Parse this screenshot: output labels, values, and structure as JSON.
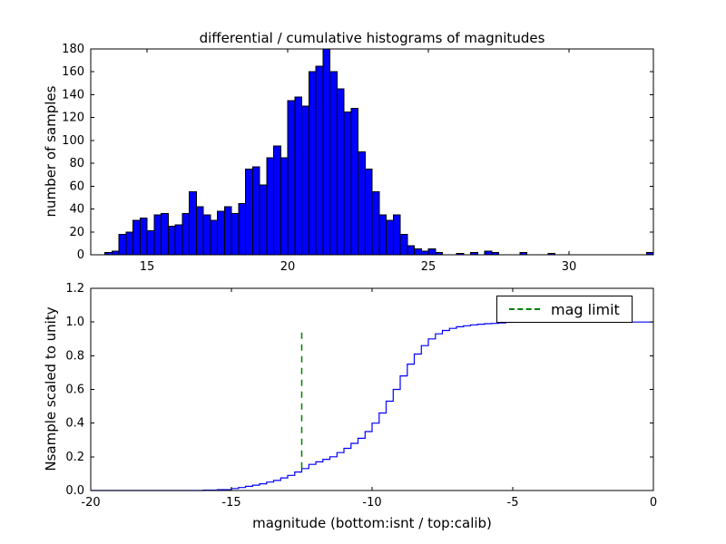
{
  "figure": {
    "background": "#ffffff",
    "axis_color": "#000000"
  },
  "chart_data": [
    {
      "type": "bar",
      "title": "differential / cumulative histograms of magnitudes",
      "ylabel": "number of samples",
      "bar_color": "#0000ff",
      "bar_edge_color": "#000000",
      "bin_width": 0.25,
      "xlim": [
        13,
        33
      ],
      "ylim": [
        0,
        180
      ],
      "xtick_values": [
        15,
        20,
        25,
        30
      ],
      "xtick_labels": [
        "15",
        "20",
        "25",
        "30"
      ],
      "ytick_values": [
        0,
        20,
        40,
        60,
        80,
        100,
        120,
        140,
        160,
        180
      ],
      "ytick_labels": [
        "0",
        "20",
        "40",
        "60",
        "80",
        "100",
        "120",
        "140",
        "160",
        "180"
      ],
      "bins_left": [
        13.5,
        13.75,
        14.0,
        14.25,
        14.5,
        14.75,
        15.0,
        15.25,
        15.5,
        15.75,
        16.0,
        16.25,
        16.5,
        16.75,
        17.0,
        17.25,
        17.5,
        17.75,
        18.0,
        18.25,
        18.5,
        18.75,
        19.0,
        19.25,
        19.5,
        19.75,
        20.0,
        20.25,
        20.5,
        20.75,
        21.0,
        21.25,
        21.5,
        21.75,
        22.0,
        22.25,
        22.5,
        22.75,
        23.0,
        23.25,
        23.5,
        23.75,
        24.0,
        24.25,
        24.5,
        24.75,
        25.0,
        25.25,
        26.0,
        26.5,
        27.0,
        27.25,
        28.25,
        29.25,
        32.75
      ],
      "counts": [
        2,
        3,
        18,
        20,
        30,
        32,
        21,
        35,
        36,
        25,
        26,
        36,
        55,
        42,
        35,
        30,
        38,
        42,
        36,
        45,
        75,
        77,
        61,
        85,
        95,
        85,
        135,
        138,
        130,
        160,
        165,
        180,
        160,
        145,
        125,
        128,
        90,
        75,
        55,
        35,
        30,
        35,
        18,
        8,
        5,
        3,
        5,
        2,
        1,
        2,
        3,
        2,
        2,
        1,
        2
      ]
    },
    {
      "type": "line",
      "step": true,
      "ylabel": "Nsample scaled to unity",
      "xlabel": "magnitude (bottom:isnt / top:calib)",
      "line_color": "#0000ff",
      "xlim": [
        -20,
        0
      ],
      "ylim": [
        0,
        1.2
      ],
      "xtick_values": [
        -20,
        -15,
        -10,
        -5,
        0
      ],
      "xtick_labels": [
        "-20",
        "-15",
        "-10",
        "-5",
        "0"
      ],
      "ytick_values": [
        0.0,
        0.2,
        0.4,
        0.6,
        0.8,
        1.0,
        1.2
      ],
      "ytick_labels": [
        "0.0",
        "0.2",
        "0.4",
        "0.6",
        "0.8",
        "1.0",
        "1.2"
      ],
      "x": [
        -20,
        -16,
        -15.5,
        -15,
        -14.75,
        -14.5,
        -14.25,
        -14,
        -13.75,
        -13.5,
        -13.25,
        -13,
        -12.75,
        -12.5,
        -12.25,
        -12,
        -11.75,
        -11.5,
        -11.25,
        -11,
        -10.75,
        -10.5,
        -10.25,
        -10,
        -9.75,
        -9.5,
        -9.25,
        -9,
        -8.75,
        -8.5,
        -8.25,
        -8,
        -7.75,
        -7.5,
        -7.25,
        -7,
        -6.75,
        -6.5,
        -6.25,
        -6,
        -5.75,
        -5.5,
        -5.25,
        -5,
        0
      ],
      "y": [
        0,
        0.002,
        0.005,
        0.012,
        0.018,
        0.025,
        0.032,
        0.04,
        0.05,
        0.06,
        0.075,
        0.09,
        0.11,
        0.13,
        0.155,
        0.17,
        0.185,
        0.2,
        0.225,
        0.25,
        0.28,
        0.31,
        0.35,
        0.4,
        0.46,
        0.53,
        0.6,
        0.68,
        0.75,
        0.81,
        0.86,
        0.9,
        0.93,
        0.95,
        0.962,
        0.972,
        0.978,
        0.983,
        0.987,
        0.99,
        0.992,
        0.995,
        0.998,
        1.0,
        1.0
      ],
      "mag_limit_line": {
        "x": -12.5,
        "ymin": 0.13,
        "ymax": 0.97,
        "color": "#008000",
        "style": "dashed",
        "label": "mag limit"
      },
      "legend_position": "upper right"
    }
  ]
}
